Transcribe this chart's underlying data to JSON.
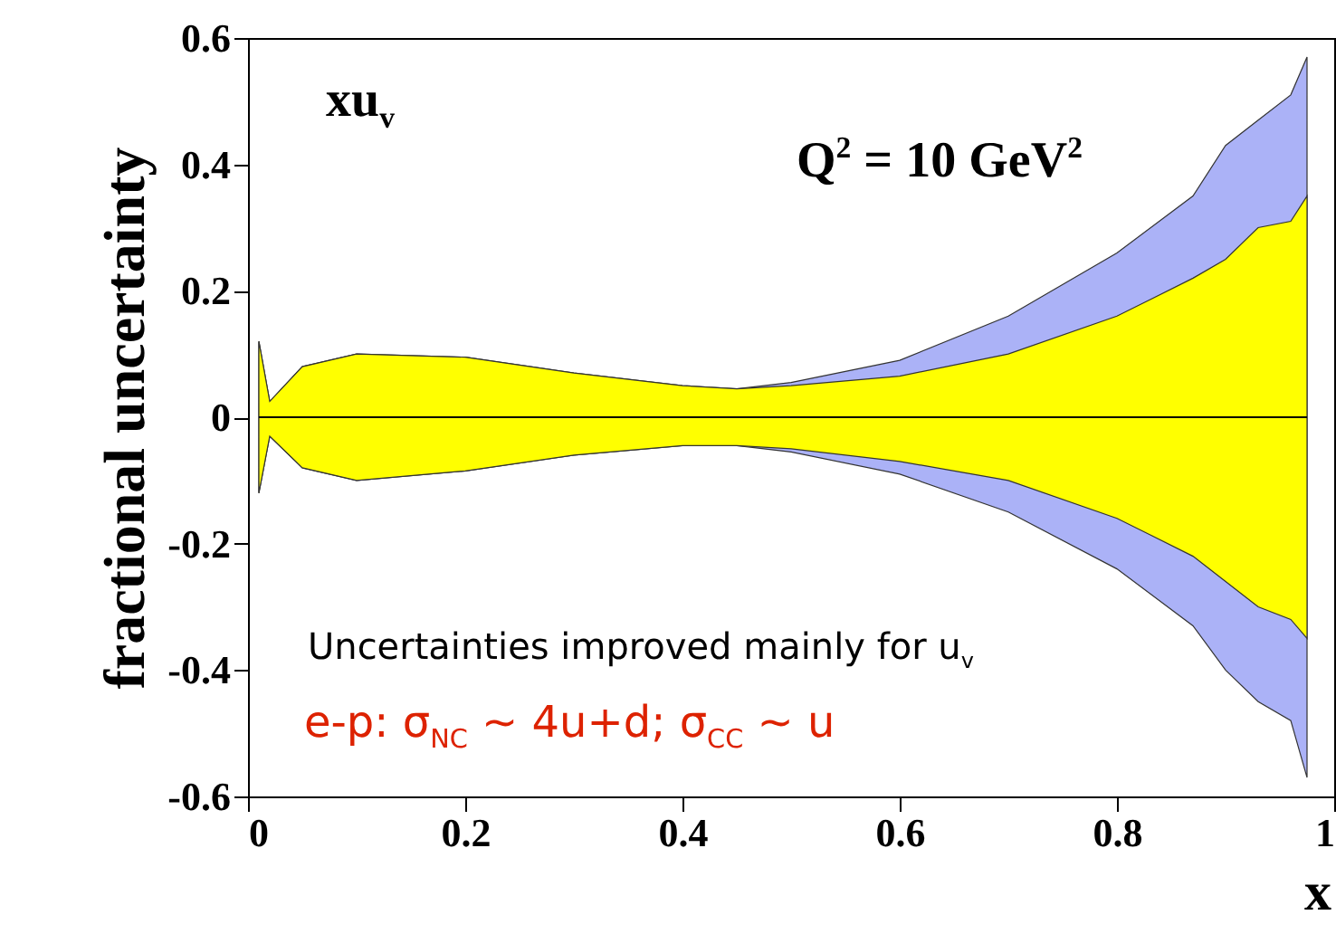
{
  "chart_data": {
    "type": "line",
    "xlabel": "x",
    "ylabel": "fractional uncertainty",
    "xlim": [
      0,
      1
    ],
    "ylim": [
      -0.6,
      0.6
    ],
    "xticks": [
      0,
      0.2,
      0.4,
      0.6,
      0.8,
      1
    ],
    "yticks": [
      -0.6,
      -0.4,
      -0.2,
      0,
      0.2,
      0.4,
      0.6
    ],
    "grid": false,
    "x": [
      0.01,
      0.02,
      0.05,
      0.1,
      0.2,
      0.3,
      0.4,
      0.45,
      0.5,
      0.6,
      0.7,
      0.8,
      0.87,
      0.9,
      0.93,
      0.96,
      0.975
    ],
    "series": [
      {
        "color": "#000000",
        "values": [
          0,
          0,
          0,
          0,
          0,
          0,
          0,
          0,
          0,
          0,
          0,
          0,
          0,
          0,
          0,
          0,
          0
        ]
      },
      {
        "color": "#4455ee",
        "values": [
          null,
          null,
          null,
          null,
          null,
          null,
          null,
          null,
          null,
          null,
          null,
          null,
          null,
          null,
          null,
          null,
          null
        ],
        "lower": [
          -0.12,
          -0.03,
          -0.08,
          -0.1,
          -0.085,
          -0.06,
          -0.045,
          -0.045,
          -0.055,
          -0.09,
          -0.15,
          -0.24,
          -0.33,
          -0.4,
          -0.45,
          -0.48,
          -0.57
        ],
        "upper": [
          0.12,
          0.025,
          0.08,
          0.1,
          0.095,
          0.07,
          0.05,
          0.045,
          0.055,
          0.09,
          0.16,
          0.26,
          0.35,
          0.43,
          0.47,
          0.51,
          0.57
        ]
      },
      {
        "color": "#ffff00",
        "values": [
          null,
          null,
          null,
          null,
          null,
          null,
          null,
          null,
          null,
          null,
          null,
          null,
          null,
          null,
          null,
          null,
          null
        ],
        "lower": [
          -0.12,
          -0.03,
          -0.08,
          -0.1,
          -0.085,
          -0.06,
          -0.045,
          -0.045,
          -0.05,
          -0.07,
          -0.1,
          -0.16,
          -0.22,
          -0.26,
          -0.3,
          -0.32,
          -0.35
        ],
        "upper": [
          0.12,
          0.025,
          0.08,
          0.1,
          0.095,
          0.07,
          0.05,
          0.045,
          0.05,
          0.065,
          0.1,
          0.16,
          0.22,
          0.25,
          0.3,
          0.31,
          0.35
        ]
      }
    ],
    "annotations": [
      "xu$_{v}$",
      "Q$^{2}$ = 10 GeV$^{2}$",
      "Uncertainties improved mainly for u$_{v}$",
      "e-p: σ$_{NC}$ ~ 4u+d; σ$_{CC}$ ~ u"
    ]
  }
}
